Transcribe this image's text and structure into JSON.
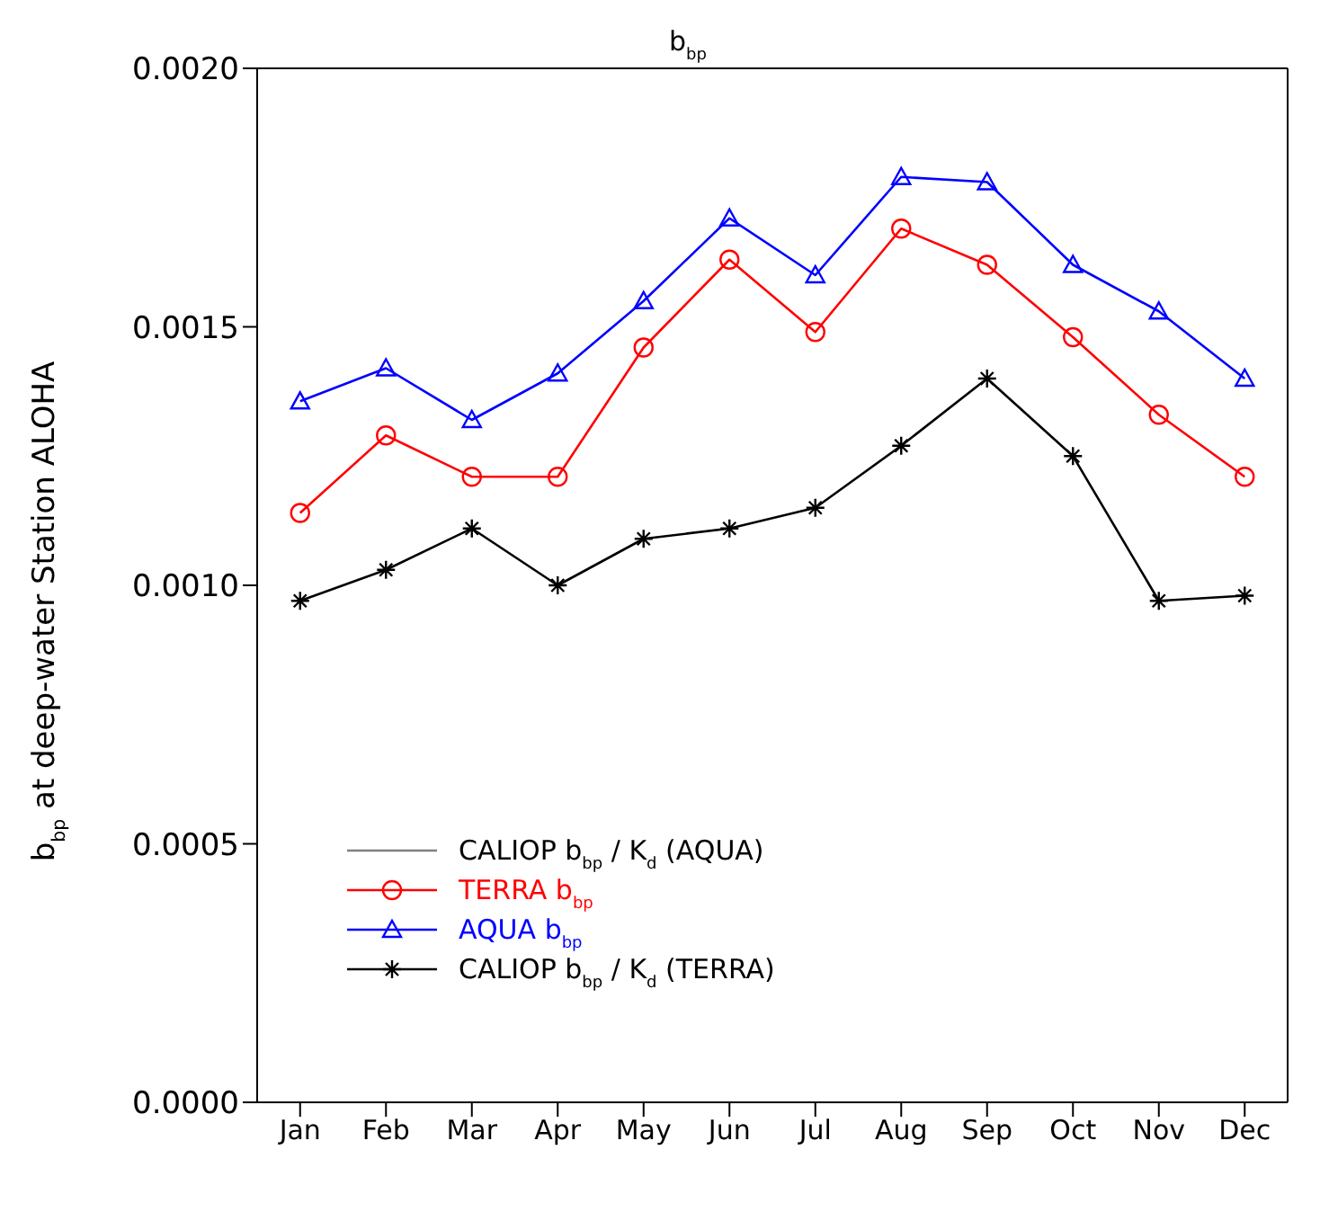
{
  "chart_data": {
    "type": "line",
    "title": "b$_{bp}$",
    "ylabel": "b$_{bp}$ at deep-water Station ALOHA",
    "categories": [
      "Jan",
      "Feb",
      "Mar",
      "Apr",
      "May",
      "Jun",
      "Jul",
      "Aug",
      "Sep",
      "Oct",
      "Nov",
      "Dec"
    ],
    "series": [
      {
        "name": "CALIOP b$_{bp}$ / K$_{d}$ (AQUA)",
        "color": "#808080",
        "marker": "none",
        "values": [
          null,
          null,
          null,
          null,
          null,
          null,
          null,
          null,
          null,
          null,
          null,
          null
        ]
      },
      {
        "name": "TERRA b$_{bp}$",
        "color": "#ff0000",
        "marker": "circle",
        "values": [
          0.00114,
          0.00129,
          0.00121,
          0.00121,
          0.00146,
          0.00163,
          0.00149,
          0.00169,
          0.00162,
          0.00148,
          0.00133,
          0.00121
        ]
      },
      {
        "name": "AQUA b$_{bp}$",
        "color": "#0000ff",
        "marker": "triangle",
        "values": [
          0.001356,
          0.00142,
          0.00132,
          0.00141,
          0.00155,
          0.00171,
          0.0016,
          0.00179,
          0.00178,
          0.00162,
          0.00153,
          0.0014
        ]
      },
      {
        "name": "CALIOP b$_{bp}$ / K$_{d}$ (TERRA)",
        "color": "#000000",
        "marker": "cross",
        "values": [
          0.00097,
          0.00103,
          0.00111,
          0.001,
          0.00109,
          0.00111,
          0.00115,
          0.00127,
          0.0014,
          0.00125,
          0.00097,
          0.00098
        ]
      }
    ],
    "ylim": [
      0,
      0.002
    ],
    "yticks": [
      {
        "value": 0,
        "label": "0.0000"
      },
      {
        "value": 0.0005,
        "label": "0.0005"
      },
      {
        "value": 0.001,
        "label": "0.0010"
      },
      {
        "value": 0.0015,
        "label": "0.0015"
      },
      {
        "value": 0.002,
        "label": "0.0020"
      }
    ],
    "legend": "bottom left",
    "line_style": "solid"
  }
}
